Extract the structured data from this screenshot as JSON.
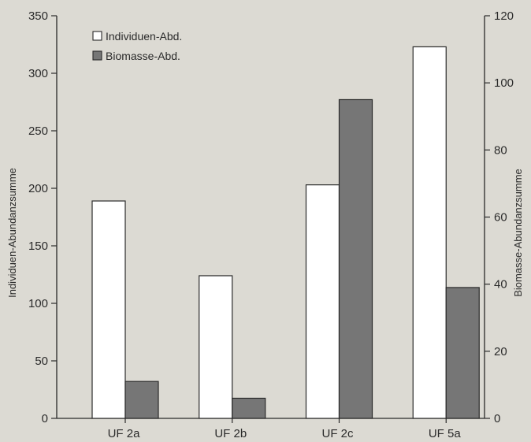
{
  "chart_data": {
    "type": "bar",
    "categories": [
      "UF 2a",
      "UF 2b",
      "UF 2c",
      "UF 5a"
    ],
    "series": [
      {
        "name": "Individuen-Abd.",
        "axis": "left",
        "values": [
          189,
          124,
          203,
          323
        ],
        "fill": "#ffffff"
      },
      {
        "name": "Biomasse-Abd.",
        "axis": "right",
        "values": [
          11,
          6,
          95,
          39
        ],
        "fill": "#767676"
      }
    ],
    "ylabel": "Individuen-Abundanzsumme",
    "y2label": "Biomasse-Abundanzsumme",
    "ylim": [
      0,
      350
    ],
    "y2lim": [
      0,
      120
    ],
    "yticks": [
      "0",
      "50",
      "100",
      "150",
      "200",
      "250",
      "300",
      "350"
    ],
    "y2ticks": [
      "0",
      "20",
      "40",
      "60",
      "80",
      "100",
      "120"
    ],
    "legend_position": "top-left",
    "grid": false,
    "colors": {
      "axis": "#2a2a2a",
      "background": "#dcdad3"
    }
  }
}
